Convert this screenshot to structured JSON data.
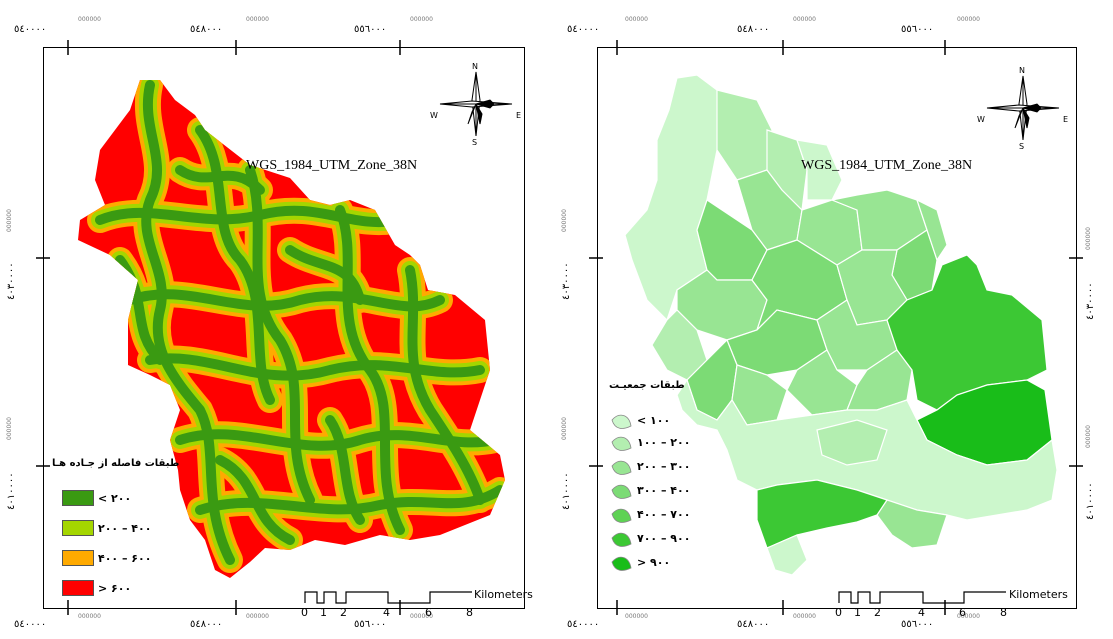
{
  "maps": [
    {
      "id": "road-distance",
      "crs": "WGS_1984_UTM_Zone_38N",
      "x_ticks": [
        {
          "label": "٥٤٠٠٠٠",
          "sup": "000000"
        },
        {
          "label": "٥٤٨٠٠٠",
          "sup": "000000"
        },
        {
          "label": "٥٥٦٠٠٠",
          "sup": "000000"
        }
      ],
      "y_ticks": [
        {
          "label": "٤٠٣٠٠٠٠",
          "sup": "000000"
        },
        {
          "label": "٤٠١٠٠٠٠",
          "sup": "000000"
        }
      ],
      "north_arrow": {
        "n": "N",
        "s": "S",
        "e": "E",
        "w": "W"
      },
      "legend": {
        "title": "طبقات فاصله از جـاده هـا",
        "items": [
          {
            "label": "< ۲۰۰",
            "color": "#3a9a12"
          },
          {
            "label": "۲۰۰ – ۴۰۰",
            "color": "#a4d600"
          },
          {
            "label": "۴۰۰ – ۶۰۰",
            "color": "#ffaa00"
          },
          {
            "label": "> ۶۰۰",
            "color": "#ff0000"
          }
        ]
      },
      "scale_bar": {
        "labels": [
          "0",
          "1",
          "2",
          "4",
          "6",
          "8"
        ],
        "unit": "Kilometers"
      }
    },
    {
      "id": "population",
      "crs": "WGS_1984_UTM_Zone_38N",
      "x_ticks": [
        {
          "label": "٥٤٠٠٠٠",
          "sup": "000000"
        },
        {
          "label": "٥٤٨٠٠٠",
          "sup": "000000"
        },
        {
          "label": "٥٥٦٠٠٠",
          "sup": "000000"
        }
      ],
      "y_ticks": [
        {
          "label": "٤٠٣٠٠٠٠",
          "sup": "000000"
        },
        {
          "label": "٤٠١٠٠٠٠",
          "sup": "000000"
        }
      ],
      "north_arrow": {
        "n": "N",
        "s": "S",
        "e": "E",
        "w": "W"
      },
      "legend": {
        "title": "طبقات جمعیـت",
        "items": [
          {
            "label": "< ۱۰۰",
            "color": "#ccf7cc"
          },
          {
            "label": "۱۰۰ – ۲۰۰",
            "color": "#b3eeb0"
          },
          {
            "label": "۲۰۰ – ۳۰۰",
            "color": "#98e593"
          },
          {
            "label": "۳۰۰ – ۴۰۰",
            "color": "#7cdb75"
          },
          {
            "label": "۴۰۰ – ۷۰۰",
            "color": "#5ed254"
          },
          {
            "label": "۷۰۰ – ۹۰۰",
            "color": "#3cc834"
          },
          {
            "label": "> ۹۰۰",
            "color": "#19bd19"
          }
        ]
      },
      "scale_bar": {
        "labels": [
          "0",
          "1",
          "2",
          "4",
          "6",
          "8"
        ],
        "unit": "Kilometers"
      }
    }
  ]
}
